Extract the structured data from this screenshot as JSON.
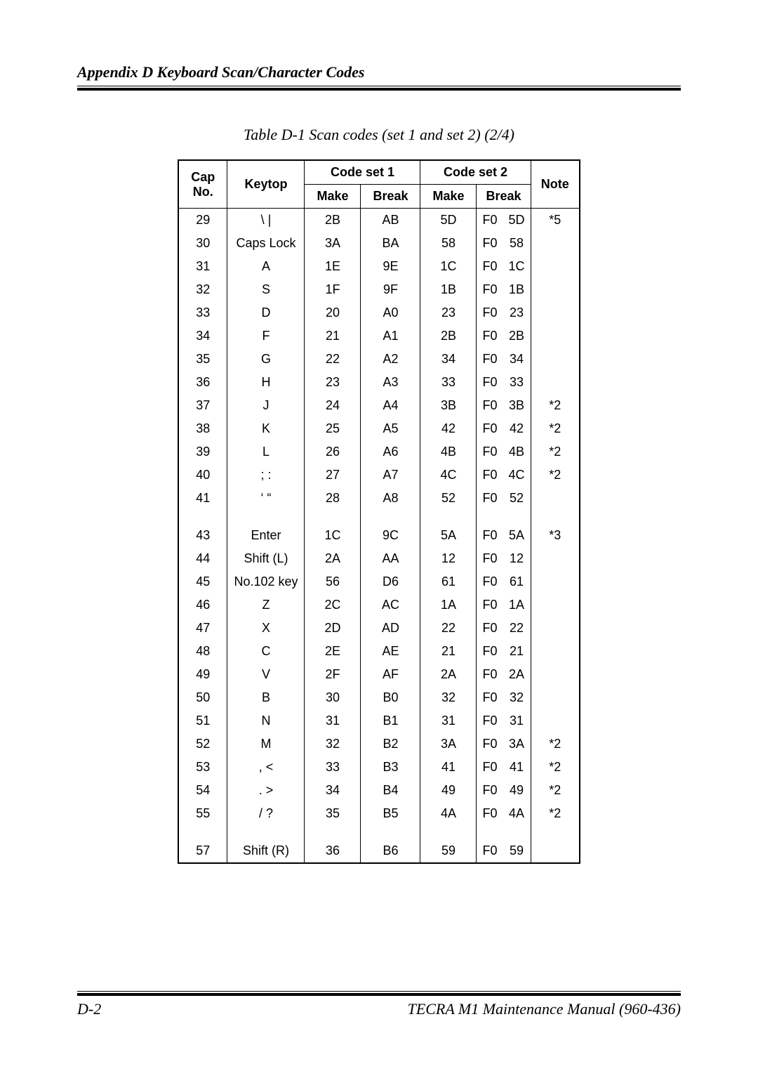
{
  "header": {
    "title": "Appendix D   Keyboard Scan/Character Codes"
  },
  "caption": "Table D-1  Scan codes (set 1 and set 2) (2/4)",
  "table": {
    "headers": {
      "cap_no_top": "Cap",
      "cap_no_bottom": "No.",
      "keytop": "Keytop",
      "code_set1": "Code set 1",
      "code_set2": "Code set 2",
      "make": "Make",
      "break": "Break",
      "note": "Note"
    },
    "rows": [
      {
        "cap": "29",
        "keytop": "\\  |",
        "cs1m": "2B",
        "cs1b": "AB",
        "cs2m": "5D",
        "cs2b1": "F0",
        "cs2b2": "5D",
        "note": "*5"
      },
      {
        "cap": "30",
        "keytop": "Caps Lock",
        "cs1m": "3A",
        "cs1b": "BA",
        "cs2m": "58",
        "cs2b1": "F0",
        "cs2b2": "58",
        "note": ""
      },
      {
        "cap": "31",
        "keytop": "A",
        "cs1m": "1E",
        "cs1b": "9E",
        "cs2m": "1C",
        "cs2b1": "F0",
        "cs2b2": "1C",
        "note": ""
      },
      {
        "cap": "32",
        "keytop": "S",
        "cs1m": "1F",
        "cs1b": "9F",
        "cs2m": "1B",
        "cs2b1": "F0",
        "cs2b2": "1B",
        "note": ""
      },
      {
        "cap": "33",
        "keytop": "D",
        "cs1m": "20",
        "cs1b": "A0",
        "cs2m": "23",
        "cs2b1": "F0",
        "cs2b2": "23",
        "note": ""
      },
      {
        "cap": "34",
        "keytop": "F",
        "cs1m": "21",
        "cs1b": "A1",
        "cs2m": "2B",
        "cs2b1": "F0",
        "cs2b2": "2B",
        "note": ""
      },
      {
        "cap": "35",
        "keytop": "G",
        "cs1m": "22",
        "cs1b": "A2",
        "cs2m": "34",
        "cs2b1": "F0",
        "cs2b2": "34",
        "note": ""
      },
      {
        "cap": "36",
        "keytop": "H",
        "cs1m": "23",
        "cs1b": "A3",
        "cs2m": "33",
        "cs2b1": "F0",
        "cs2b2": "33",
        "note": ""
      },
      {
        "cap": "37",
        "keytop": "J",
        "cs1m": "24",
        "cs1b": "A4",
        "cs2m": "3B",
        "cs2b1": "F0",
        "cs2b2": "3B",
        "note": "*2"
      },
      {
        "cap": "38",
        "keytop": "K",
        "cs1m": "25",
        "cs1b": "A5",
        "cs2m": "42",
        "cs2b1": "F0",
        "cs2b2": "42",
        "note": "*2"
      },
      {
        "cap": "39",
        "keytop": "L",
        "cs1m": "26",
        "cs1b": "A6",
        "cs2m": "4B",
        "cs2b1": "F0",
        "cs2b2": "4B",
        "note": "*2"
      },
      {
        "cap": "40",
        "keytop": ";  :",
        "cs1m": "27",
        "cs1b": "A7",
        "cs2m": "4C",
        "cs2b1": "F0",
        "cs2b2": "4C",
        "note": "*2"
      },
      {
        "cap": "41",
        "keytop": "‘   “",
        "cs1m": "28",
        "cs1b": "A8",
        "cs2m": "52",
        "cs2b1": "F0",
        "cs2b2": "52",
        "note": ""
      },
      {
        "spacer": true
      },
      {
        "cap": "43",
        "keytop": "Enter",
        "cs1m": "1C",
        "cs1b": "9C",
        "cs2m": "5A",
        "cs2b1": "F0",
        "cs2b2": "5A",
        "note": "*3"
      },
      {
        "cap": "44",
        "keytop": "Shift (L)",
        "cs1m": "2A",
        "cs1b": "AA",
        "cs2m": "12",
        "cs2b1": "F0",
        "cs2b2": "12",
        "note": ""
      },
      {
        "cap": "45",
        "keytop": "No.102 key",
        "cs1m": "56",
        "cs1b": "D6",
        "cs2m": "61",
        "cs2b1": "F0",
        "cs2b2": "61",
        "note": ""
      },
      {
        "cap": "46",
        "keytop": "Z",
        "cs1m": "2C",
        "cs1b": "AC",
        "cs2m": "1A",
        "cs2b1": "F0",
        "cs2b2": "1A",
        "note": ""
      },
      {
        "cap": "47",
        "keytop": "X",
        "cs1m": "2D",
        "cs1b": "AD",
        "cs2m": "22",
        "cs2b1": "F0",
        "cs2b2": "22",
        "note": ""
      },
      {
        "cap": "48",
        "keytop": "C",
        "cs1m": "2E",
        "cs1b": "AE",
        "cs2m": "21",
        "cs2b1": "F0",
        "cs2b2": "21",
        "note": ""
      },
      {
        "cap": "49",
        "keytop": "V",
        "cs1m": "2F",
        "cs1b": "AF",
        "cs2m": "2A",
        "cs2b1": "F0",
        "cs2b2": "2A",
        "note": ""
      },
      {
        "cap": "50",
        "keytop": "B",
        "cs1m": "30",
        "cs1b": "B0",
        "cs2m": "32",
        "cs2b1": "F0",
        "cs2b2": "32",
        "note": ""
      },
      {
        "cap": "51",
        "keytop": "N",
        "cs1m": "31",
        "cs1b": "B1",
        "cs2m": "31",
        "cs2b1": "F0",
        "cs2b2": "31",
        "note": ""
      },
      {
        "cap": "52",
        "keytop": "M",
        "cs1m": "32",
        "cs1b": "B2",
        "cs2m": "3A",
        "cs2b1": "F0",
        "cs2b2": "3A",
        "note": "*2"
      },
      {
        "cap": "53",
        "keytop": ",  <",
        "cs1m": "33",
        "cs1b": "B3",
        "cs2m": "41",
        "cs2b1": "F0",
        "cs2b2": "41",
        "note": "*2"
      },
      {
        "cap": "54",
        "keytop": ".  >",
        "cs1m": "34",
        "cs1b": "B4",
        "cs2m": "49",
        "cs2b1": "F0",
        "cs2b2": "49",
        "note": "*2"
      },
      {
        "cap": "55",
        "keytop": "/  ?",
        "cs1m": "35",
        "cs1b": "B5",
        "cs2m": "4A",
        "cs2b1": "F0",
        "cs2b2": "4A",
        "note": "*2"
      },
      {
        "spacer": true
      },
      {
        "cap": "57",
        "keytop": "Shift (R)",
        "cs1m": "36",
        "cs1b": "B6",
        "cs2m": "59",
        "cs2b1": "F0",
        "cs2b2": "59",
        "note": ""
      }
    ]
  },
  "footer": {
    "page": "D-2",
    "manual": "TECRA M1 Maintenance Manual (960-436)"
  }
}
